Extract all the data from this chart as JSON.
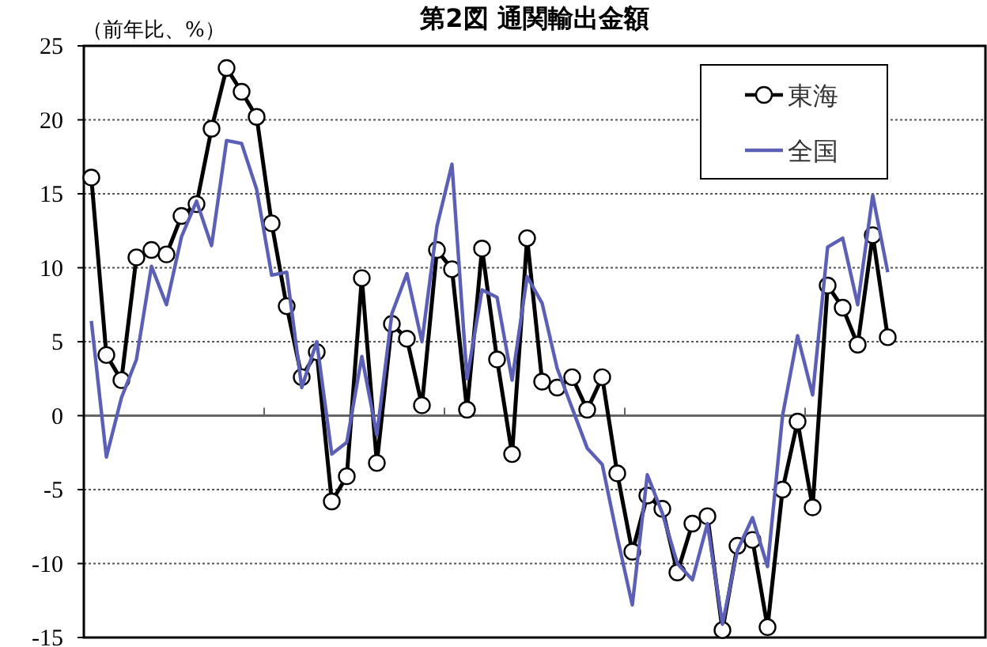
{
  "chart_data": {
    "type": "line",
    "title": "第2図 通関輸出金額",
    "ylabel": "（前年比、%）",
    "categories": [
      null,
      null,
      null,
      null,
      null,
      null,
      null,
      null,
      null,
      null,
      null,
      null,
      null,
      null,
      null,
      null,
      null,
      null,
      null,
      null,
      null,
      null,
      null,
      null,
      null,
      null,
      null,
      null,
      null,
      null,
      null,
      null,
      null,
      null,
      null,
      null,
      null,
      null,
      null,
      null,
      null,
      null,
      null,
      null,
      null,
      null,
      null,
      null,
      null,
      null,
      null,
      null,
      null,
      null
    ],
    "series": [
      {
        "name": "東海",
        "color": "#000000",
        "marker": "circle",
        "values": [
          16.1,
          4.1,
          2.4,
          10.7,
          11.2,
          10.9,
          13.5,
          14.3,
          19.4,
          23.5,
          21.9,
          20.2,
          13.0,
          7.4,
          2.6,
          4.3,
          -5.8,
          -4.1,
          9.3,
          -3.2,
          6.2,
          5.2,
          0.7,
          11.2,
          9.9,
          0.4,
          11.3,
          3.8,
          -2.6,
          12.0,
          2.3,
          1.9,
          2.6,
          0.4,
          2.6,
          -3.9,
          -9.2,
          -5.4,
          -6.3,
          -10.6,
          -7.3,
          -6.8,
          -14.5,
          -8.8,
          -8.4,
          -14.3,
          -5.0,
          -0.4,
          -6.2,
          8.8,
          7.3,
          4.8,
          12.2,
          5.3
        ]
      },
      {
        "name": "全国",
        "color": "#5b5fb5",
        "marker": "none",
        "values": [
          6.4,
          -2.8,
          1.2,
          3.8,
          10.1,
          7.5,
          12.1,
          14.5,
          11.5,
          18.6,
          18.4,
          15.3,
          9.5,
          9.7,
          1.9,
          5.0,
          -2.6,
          -1.8,
          4.0,
          -1.3,
          6.9,
          9.6,
          5.0,
          12.8,
          17.0,
          2.5,
          8.5,
          8.0,
          2.4,
          9.4,
          7.6,
          3.2,
          0.5,
          -2.2,
          -3.3,
          -8.2,
          -12.8,
          -4.0,
          -6.6,
          -10.0,
          -11.1,
          -7.3,
          -14.1,
          -9.1,
          -6.9,
          -10.2,
          0.0,
          5.4,
          1.4,
          11.4,
          12.0,
          7.5,
          14.9,
          9.7
        ]
      }
    ],
    "ylim": [
      -15,
      25
    ],
    "yticks": [
      -15,
      -10,
      -5,
      0,
      5,
      10,
      15,
      20,
      25
    ],
    "grid": "y",
    "legend": "top right",
    "tick_labels": "y"
  }
}
